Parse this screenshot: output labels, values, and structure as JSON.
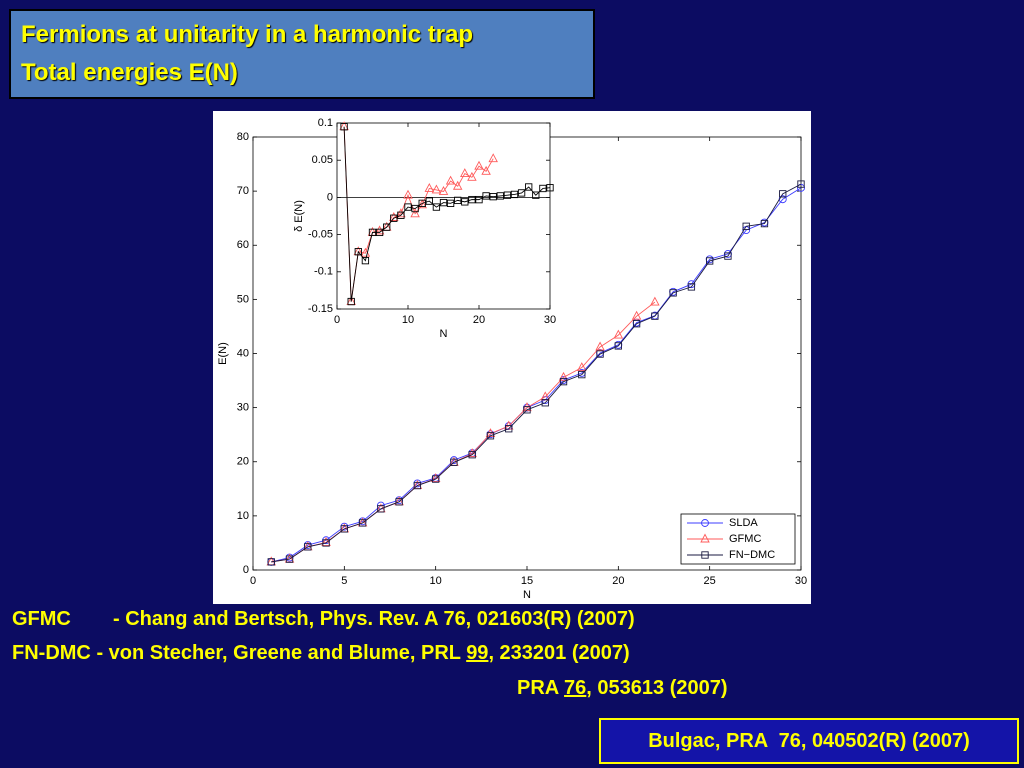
{
  "title": [
    "Fermions at unitarity in a harmonic trap",
    "Total energies E(N)"
  ],
  "references": [
    {
      "label": "GFMC",
      "text": "- Chang and Bertsch, Phys. Rev. A 76, 021603(R) (2007)"
    },
    {
      "label": "FN-DMC",
      "parts": [
        "- von Stecher, Greene and Blume, PRL ",
        "99",
        ", 233201 (2007)"
      ]
    },
    {
      "parts": [
        "PRA ",
        "76",
        ", 053613 (2007)"
      ]
    }
  ],
  "citation": "Bulgac, PRA  76, 040502(R) (2007)",
  "chart_data": [
    {
      "type": "line",
      "xlabel": "N",
      "ylabel": "E(N)",
      "x": [
        1,
        2,
        3,
        4,
        5,
        6,
        7,
        8,
        9,
        10,
        11,
        12,
        13,
        14,
        15,
        16,
        17,
        18,
        19,
        20,
        21,
        22,
        23,
        24,
        25,
        26,
        27,
        28,
        29,
        30
      ],
      "series": [
        {
          "name": "SLDA",
          "color": "#3c3cff",
          "marker": "circle",
          "values": [
            1.5,
            2.3,
            4.6,
            5.5,
            8.0,
            9.0,
            11.9,
            12.9,
            16.0,
            17.0,
            20.3,
            21.6,
            25.1,
            26.6,
            30.0,
            31.4,
            35.1,
            36.4,
            40.1,
            41.6,
            45.7,
            47.0,
            51.4,
            52.8,
            57.4,
            58.4,
            62.8,
            64.2,
            68.5,
            70.6
          ]
        },
        {
          "name": "GFMC",
          "color": "#ff5a5a",
          "marker": "triangle",
          "values": [
            1.5,
            2.01,
            4.28,
            5.1,
            7.6,
            8.7,
            11.3,
            12.6,
            15.6,
            16.9,
            19.9,
            21.5,
            25.2,
            26.6,
            30.0,
            32.0,
            35.6,
            37.4,
            41.2,
            43.4,
            46.9,
            49.5,
            null,
            null,
            null,
            null,
            null,
            null,
            null,
            null
          ]
        },
        {
          "name": "FN−DMC",
          "color": "#1a1a40",
          "marker": "square",
          "values": [
            1.5,
            2.01,
            4.28,
            5.0,
            7.6,
            8.7,
            11.3,
            12.6,
            15.6,
            16.8,
            19.9,
            21.3,
            24.8,
            26.1,
            29.6,
            30.9,
            34.8,
            36.1,
            39.9,
            41.4,
            45.5,
            46.9,
            51.2,
            52.3,
            57.1,
            58.0,
            63.5,
            64.0,
            69.5,
            71.3
          ]
        }
      ],
      "xlim": [
        0,
        30
      ],
      "xticks": [
        0,
        5,
        10,
        15,
        20,
        25,
        30
      ],
      "ylim": [
        0,
        80
      ],
      "yticks": [
        0,
        10,
        20,
        30,
        40,
        50,
        60,
        70,
        80
      ],
      "legend": "lower right"
    },
    {
      "type": "line",
      "xlabel": "N",
      "ylabel": "δ E(N)",
      "x": [
        1,
        2,
        3,
        4,
        5,
        6,
        7,
        8,
        9,
        10,
        11,
        12,
        13,
        14,
        15,
        16,
        17,
        18,
        19,
        20,
        21,
        22,
        23,
        24,
        25,
        26,
        27,
        28,
        29,
        30
      ],
      "series": [
        {
          "name": "GFMC",
          "color": "#ff5a5a",
          "marker": "triangle",
          "values": [
            0.095,
            -0.14,
            -0.073,
            -0.075,
            -0.047,
            -0.045,
            -0.04,
            -0.027,
            -0.022,
            0.003,
            -0.022,
            -0.01,
            0.012,
            0.01,
            0.008,
            0.022,
            0.015,
            0.032,
            0.027,
            0.042,
            0.035,
            0.052,
            null,
            null,
            null,
            null,
            null,
            null,
            null,
            null
          ]
        },
        {
          "name": "FN−DMC",
          "color": "#000000",
          "marker": "square",
          "values": [
            0.095,
            -0.14,
            -0.073,
            -0.085,
            -0.047,
            -0.047,
            -0.04,
            -0.028,
            -0.024,
            -0.013,
            -0.015,
            -0.008,
            -0.005,
            -0.013,
            -0.007,
            -0.008,
            -0.004,
            -0.006,
            -0.003,
            -0.003,
            0.002,
            0.001,
            0.002,
            0.003,
            0.004,
            0.006,
            0.014,
            0.003,
            0.012,
            0.013
          ]
        }
      ],
      "xlim": [
        0,
        30
      ],
      "xticks": [
        0,
        10,
        20,
        30
      ],
      "ylim": [
        -0.15,
        0.1
      ],
      "yticks": [
        -0.15,
        -0.1,
        -0.05,
        0,
        0.05,
        0.1
      ],
      "hlines": [
        0
      ]
    }
  ]
}
